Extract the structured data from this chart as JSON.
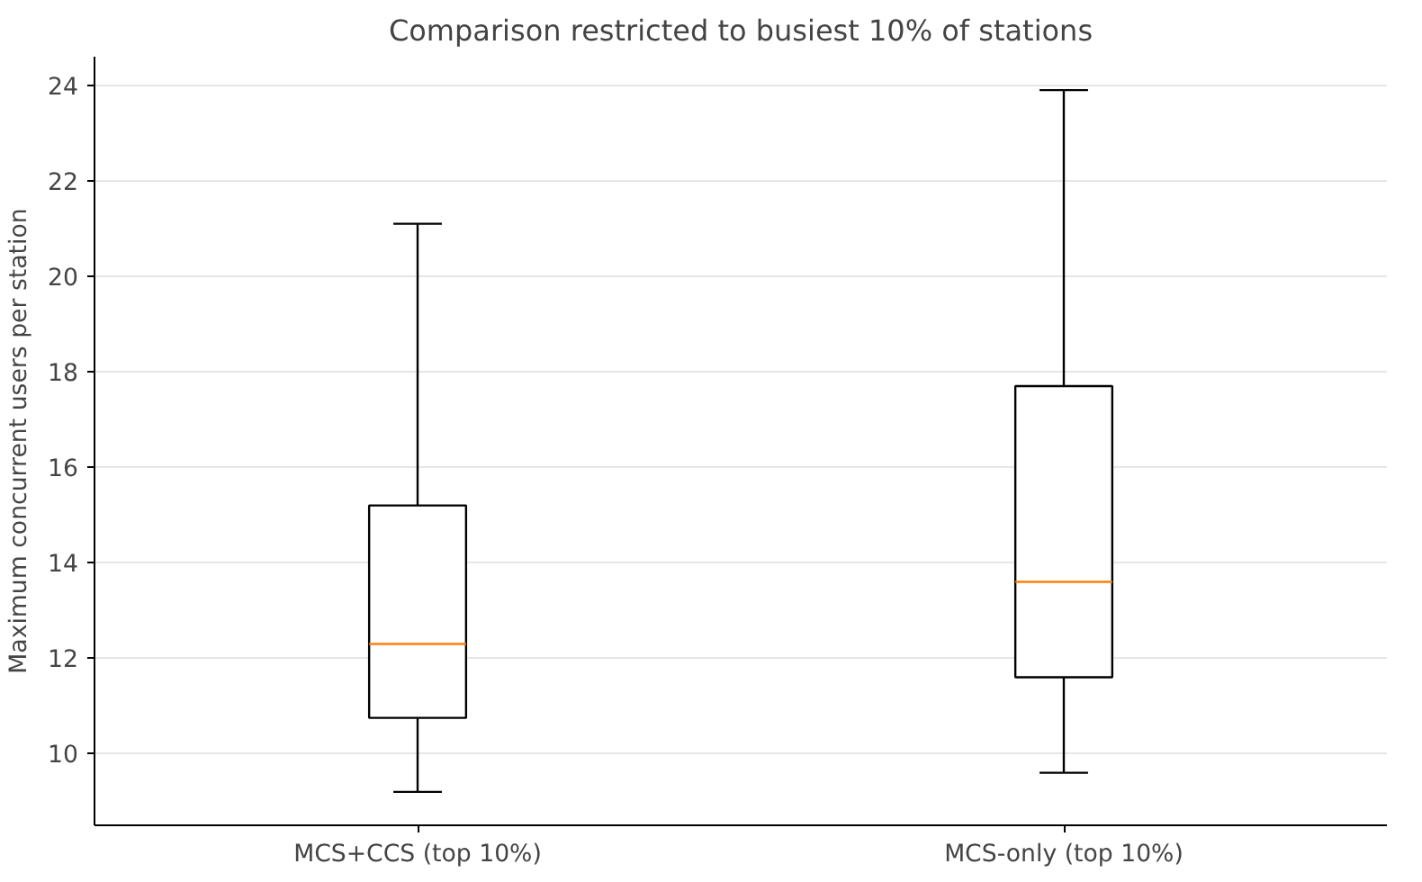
{
  "chart_data": {
    "type": "box",
    "title": "Comparison restricted to busiest 10% of stations",
    "ylabel": "Maximum concurrent users per station",
    "categories": [
      "MCS+CCS (top 10%)",
      "MCS-only (top 10%)"
    ],
    "boxes": [
      {
        "low": 9.2,
        "q1": 10.75,
        "median": 12.3,
        "q3": 15.2,
        "high": 21.1
      },
      {
        "low": 9.6,
        "q1": 11.6,
        "median": 13.6,
        "q3": 17.7,
        "high": 23.9
      }
    ],
    "ylim": [
      8.5,
      24.6
    ],
    "yticks": [
      10,
      12,
      14,
      16,
      18,
      20,
      22,
      24
    ],
    "grid": "y"
  }
}
